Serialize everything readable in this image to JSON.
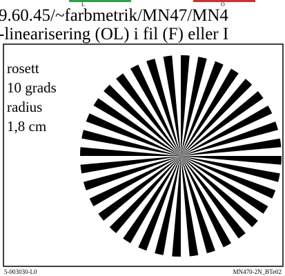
{
  "header": {
    "marks": [
      "L",
      "O"
    ],
    "lines": [
      "9.60.45/~farbmetrik/MN47/MN4",
      "-linearisering (OL) i fil (F) eller I"
    ]
  },
  "figure": {
    "caption": [
      "rosett",
      "10 grads",
      "radius",
      "1,8 cm"
    ]
  },
  "footer": {
    "left": "5-003030-L0",
    "right": "MN470-2N_BTe02"
  }
}
